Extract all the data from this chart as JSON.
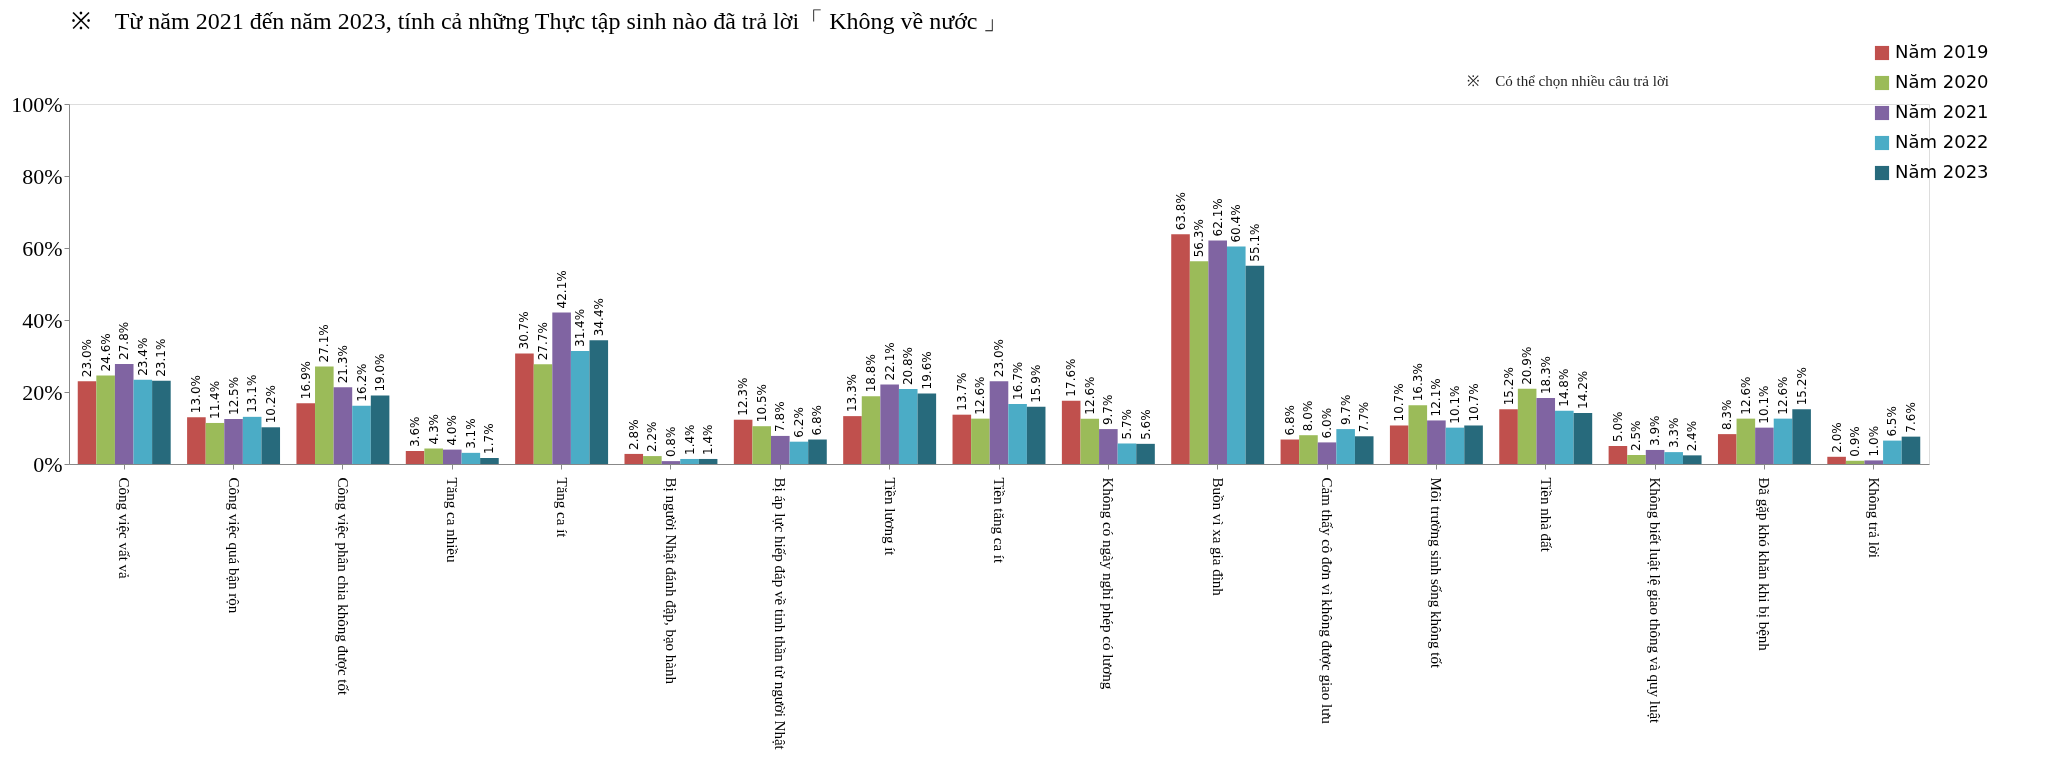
{
  "chart_data": {
    "type": "bar",
    "subtitle": "※　Từ năm 2021 đến năm 2023,  tính cả những Thực tập sinh nào đã trả lời「 Không về nước 」",
    "annotations": [
      "※　Có thể chọn nhiều câu trả lời"
    ],
    "categories": [
      "Công việc vất vả",
      "Công việc quá bận rộn",
      "Công việc phân chia không được tốt",
      "Tăng ca nhiều",
      "Tăng ca ít",
      "Bị người Nhật đánh đập, bạo hành",
      "Bị áp lực hiếp đáp về tinh thần từ người Nhật",
      "Tiền lương ít",
      "Tiền tăng ca ít",
      "Không có ngày nghỉ phép có lương",
      "Buồn vì xa gia đình",
      "Cảm thấy cô đơn vì không được giao lưu",
      "Môi trường sinh sống không tốt",
      "Tiền nhà đất",
      "Không biết luật lệ giao thông và quy luật",
      "Đã gặp khó khăn khi bị bệnh",
      "Không trả lời"
    ],
    "series": [
      {
        "name": "Năm 2019",
        "color": "#c0504d",
        "values": [
          23.0,
          13.0,
          16.9,
          3.6,
          30.7,
          2.8,
          12.3,
          13.3,
          13.7,
          17.6,
          63.8,
          6.8,
          10.7,
          15.2,
          5.0,
          8.3,
          2.0
        ],
        "value_labels": [
          "23.0%",
          "13.0%",
          "16.9%",
          "3.6%",
          "30.7%",
          "2.8%",
          "12.3%",
          "13.3%",
          "13.7%",
          "17.6%",
          "63.8%",
          "6.8%",
          "10.7%",
          "15.2%",
          "5.0%",
          "8.3%",
          "2.0%"
        ]
      },
      {
        "name": "Năm 2020",
        "color": "#9bbb59",
        "values": [
          24.6,
          11.4,
          27.1,
          4.3,
          27.7,
          2.2,
          10.5,
          18.8,
          12.6,
          12.6,
          56.3,
          8.0,
          16.3,
          20.9,
          2.5,
          12.6,
          0.9
        ],
        "value_labels": [
          "24.6%",
          "11.4%",
          "27.1%",
          "4.3%",
          "27.7%",
          "2.2%",
          "10.5%",
          "18.8%",
          "12.6%",
          "12.6%",
          "56.3%",
          "8.0%",
          "16.3%",
          "20.9%",
          "2.5%",
          "12.6%",
          "0.9%"
        ]
      },
      {
        "name": "Năm 2021",
        "color": "#8064a2",
        "values": [
          27.8,
          12.5,
          21.3,
          4.0,
          42.1,
          0.8,
          7.8,
          22.1,
          23.0,
          9.7,
          62.1,
          6.0,
          12.1,
          18.3,
          3.9,
          10.1,
          1.0
        ],
        "value_labels": [
          "27.8%",
          "12.5%",
          "21.3%",
          "4.0%",
          "42.1%",
          "0.8%",
          "7.8%",
          "22.1%",
          "23.0%",
          "9.7%",
          "62.1%",
          "6.0%",
          "12.1%",
          "18.3%",
          "3.9%",
          "10.1%",
          "1.0%"
        ]
      },
      {
        "name": "Năm 2022",
        "color": "#4bacc6",
        "values": [
          23.4,
          13.1,
          16.2,
          3.1,
          31.4,
          1.4,
          6.2,
          20.8,
          16.7,
          5.7,
          60.4,
          9.7,
          10.1,
          14.8,
          3.3,
          12.6,
          6.5
        ],
        "value_labels": [
          "23.4%",
          "13.1%",
          "16.2%",
          "3.1%",
          "31.4%",
          "1.4%",
          "6.2%",
          "20.8%",
          "16.7%",
          "5.7%",
          "60.4%",
          "9.7%",
          "10.1%",
          "14.8%",
          "3.3%",
          "12.6%",
          "6.5%"
        ]
      },
      {
        "name": "Năm 2023",
        "color": "#276a7c",
        "values": [
          23.1,
          10.2,
          19.0,
          1.7,
          34.4,
          1.4,
          6.8,
          19.6,
          15.9,
          5.6,
          55.1,
          7.7,
          10.7,
          14.2,
          2.4,
          15.2,
          7.6
        ],
        "value_labels": [
          "23.1%",
          "10.2%",
          "19.0%",
          "1.7%",
          "34.4%",
          "1.4%",
          "6.8%",
          "19.6%",
          "15.9%",
          "5.6%",
          "55.1%",
          "7.7%",
          "10.7%",
          "14.2%",
          "2.4%",
          "15.2%",
          "7.6%"
        ]
      }
    ],
    "ylim": [
      0,
      100
    ],
    "yticks": [
      {
        "value": 0,
        "label": "0%"
      },
      {
        "value": 20,
        "label": "20%"
      },
      {
        "value": 40,
        "label": "40%"
      },
      {
        "value": 60,
        "label": "60%"
      },
      {
        "value": 80,
        "label": "80%"
      },
      {
        "value": 100,
        "label": "100%"
      }
    ],
    "legend": "top right",
    "grid": false
  }
}
